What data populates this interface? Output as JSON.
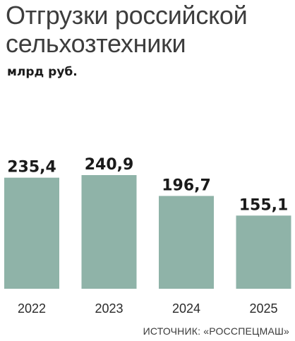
{
  "chart_data": {
    "type": "bar",
    "title": "Отгрузки российской сельхозтехники",
    "unit_label": "млрд руб.",
    "categories": [
      "2022",
      "2023",
      "2024",
      "2025"
    ],
    "values": [
      235.4,
      240.9,
      196.7,
      155.1
    ],
    "value_labels": [
      "235,4",
      "240,9",
      "196,7",
      "155,1"
    ],
    "ylim": [
      0,
      255
    ],
    "grid": false,
    "bar_color": "#8fb3a8",
    "source": "ИСТОЧНИК: «РОССПЕЦМАШ»"
  }
}
